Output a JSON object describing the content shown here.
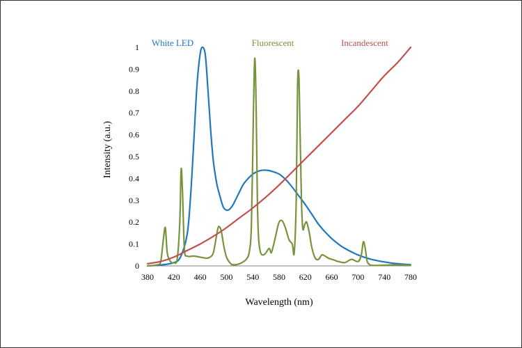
{
  "chart_data": {
    "type": "line",
    "title": "",
    "xlabel": "Wavelength (nm)",
    "ylabel": "Intensity (a.u.)",
    "xlim": [
      380,
      780
    ],
    "ylim": [
      0,
      1
    ],
    "x_ticks": [
      "380",
      "420",
      "460",
      "500",
      "540",
      "580",
      "620",
      "660",
      "700",
      "740",
      "780"
    ],
    "y_ticks": [
      "0",
      "0.1",
      "0.2",
      "0.3",
      "0.4",
      "0.5",
      "0.6",
      "0.7",
      "0.8",
      "0.9",
      "1"
    ],
    "grid": false,
    "series": [
      {
        "name": "White LED",
        "color": "#1F77C0",
        "x": [
          380,
          400,
          420,
          430,
          440,
          445,
          450,
          455,
          460,
          464,
          468,
          472,
          476,
          480,
          485,
          490,
          495,
          500,
          505,
          510,
          515,
          520,
          525,
          530,
          540,
          550,
          560,
          570,
          580,
          590,
          600,
          610,
          620,
          630,
          640,
          650,
          660,
          670,
          680,
          700,
          720,
          740,
          760,
          780
        ],
        "y": [
          0,
          0.004,
          0.015,
          0.04,
          0.14,
          0.3,
          0.55,
          0.82,
          0.97,
          1.0,
          0.96,
          0.8,
          0.62,
          0.48,
          0.38,
          0.32,
          0.27,
          0.255,
          0.26,
          0.28,
          0.31,
          0.34,
          0.37,
          0.39,
          0.42,
          0.435,
          0.438,
          0.432,
          0.42,
          0.395,
          0.36,
          0.32,
          0.28,
          0.235,
          0.19,
          0.155,
          0.125,
          0.1,
          0.08,
          0.05,
          0.03,
          0.018,
          0.01,
          0.005
        ]
      },
      {
        "name": "Fluorescent",
        "color": "#77933C",
        "x": [
          380,
          395,
          400,
          404,
          407,
          410,
          415,
          420,
          425,
          429,
          431,
          433,
          436,
          440,
          450,
          460,
          470,
          475,
          480,
          485,
          488,
          492,
          496,
          500,
          505,
          510,
          520,
          530,
          535,
          538,
          541,
          543,
          545,
          547,
          549,
          552,
          556,
          560,
          565,
          568,
          572,
          575,
          580,
          585,
          590,
          595,
          600,
          603,
          606,
          608,
          610,
          612,
          614,
          616,
          619,
          622,
          626,
          630,
          635,
          640,
          645,
          650,
          655,
          660,
          665,
          670,
          680,
          690,
          700,
          705,
          708,
          711,
          714,
          718,
          720,
          730,
          740,
          760,
          780
        ],
        "y": [
          0,
          0.005,
          0.02,
          0.12,
          0.175,
          0.06,
          0.02,
          0.015,
          0.03,
          0.2,
          0.44,
          0.35,
          0.08,
          0.045,
          0.045,
          0.04,
          0.035,
          0.04,
          0.06,
          0.14,
          0.18,
          0.16,
          0.09,
          0.04,
          0.015,
          0.005,
          0.01,
          0.03,
          0.07,
          0.2,
          0.7,
          0.95,
          0.75,
          0.3,
          0.12,
          0.06,
          0.05,
          0.06,
          0.08,
          0.06,
          0.1,
          0.14,
          0.2,
          0.205,
          0.17,
          0.12,
          0.1,
          0.06,
          0.3,
          0.82,
          0.87,
          0.6,
          0.3,
          0.17,
          0.19,
          0.2,
          0.15,
          0.08,
          0.035,
          0.03,
          0.05,
          0.045,
          0.035,
          0.03,
          0.025,
          0.02,
          0.015,
          0.03,
          0.02,
          0.05,
          0.11,
          0.08,
          0.02,
          0.005,
          0.003,
          0.002,
          0.003,
          0.005,
          0.003
        ]
      },
      {
        "name": "Incandescent",
        "color": "#C0504D",
        "x": [
          380,
          400,
          420,
          440,
          460,
          480,
          500,
          520,
          540,
          560,
          580,
          600,
          620,
          640,
          660,
          680,
          700,
          720,
          740,
          760,
          780
        ],
        "y": [
          0.01,
          0.02,
          0.04,
          0.07,
          0.1,
          0.135,
          0.175,
          0.22,
          0.265,
          0.315,
          0.37,
          0.43,
          0.49,
          0.55,
          0.61,
          0.67,
          0.73,
          0.8,
          0.87,
          0.93,
          1.0
        ]
      }
    ]
  }
}
